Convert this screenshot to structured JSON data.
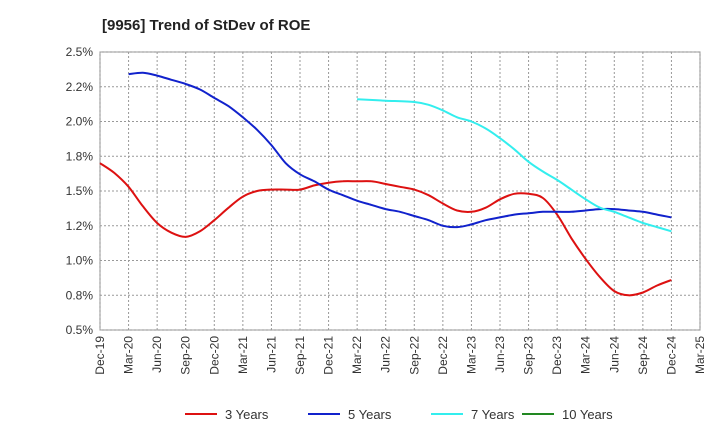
{
  "chart_data": {
    "type": "line",
    "title": "[9956]  Trend of StDev of ROE",
    "xlabel": "",
    "ylabel": "",
    "x_ticks": [
      "Dec-19",
      "Mar-20",
      "Jun-20",
      "Sep-20",
      "Dec-20",
      "Mar-21",
      "Jun-21",
      "Sep-21",
      "Dec-21",
      "Mar-22",
      "Jun-22",
      "Sep-22",
      "Dec-22",
      "Mar-23",
      "Jun-23",
      "Sep-23",
      "Dec-23",
      "Mar-24",
      "Jun-24",
      "Sep-24",
      "Dec-24",
      "Mar-25"
    ],
    "y_ticks": [
      "0.5%",
      "0.8%",
      "1.0%",
      "1.2%",
      "1.5%",
      "1.8%",
      "2.0%",
      "2.2%",
      "2.5%"
    ],
    "ylim": [
      0.5,
      2.5
    ],
    "grid": true,
    "legend_position": "bottom",
    "colors": {
      "3 Years": "#dd1111",
      "5 Years": "#1122cc",
      "7 Years": "#33eeee",
      "10 Years": "#228822"
    },
    "series": [
      {
        "name": "3 Years",
        "points": [
          [
            0,
            1.7
          ],
          [
            0.5,
            1.63
          ],
          [
            1,
            1.53
          ],
          [
            1.5,
            1.39
          ],
          [
            2,
            1.27
          ],
          [
            2.5,
            1.2
          ],
          [
            3,
            1.17
          ],
          [
            3.5,
            1.21
          ],
          [
            4,
            1.29
          ],
          [
            4.5,
            1.38
          ],
          [
            5,
            1.46
          ],
          [
            5.5,
            1.5
          ],
          [
            6,
            1.51
          ],
          [
            6.5,
            1.51
          ],
          [
            7,
            1.51
          ],
          [
            7.5,
            1.54
          ],
          [
            8,
            1.56
          ],
          [
            8.5,
            1.57
          ],
          [
            9,
            1.57
          ],
          [
            9.5,
            1.57
          ],
          [
            10,
            1.55
          ],
          [
            10.5,
            1.53
          ],
          [
            11,
            1.51
          ],
          [
            11.5,
            1.47
          ],
          [
            12,
            1.41
          ],
          [
            12.5,
            1.36
          ],
          [
            13,
            1.35
          ],
          [
            13.5,
            1.38
          ],
          [
            14,
            1.44
          ],
          [
            14.5,
            1.48
          ],
          [
            15,
            1.48
          ],
          [
            15.5,
            1.45
          ],
          [
            16,
            1.33
          ],
          [
            16.5,
            1.16
          ],
          [
            17,
            1.01
          ],
          [
            17.5,
            0.88
          ],
          [
            18,
            0.78
          ],
          [
            18.5,
            0.75
          ],
          [
            19,
            0.77
          ],
          [
            19.5,
            0.82
          ],
          [
            20,
            0.86
          ]
        ]
      },
      {
        "name": "5 Years",
        "points": [
          [
            1,
            2.34
          ],
          [
            1.5,
            2.35
          ],
          [
            2,
            2.33
          ],
          [
            2.5,
            2.3
          ],
          [
            3,
            2.27
          ],
          [
            3.5,
            2.23
          ],
          [
            4,
            2.17
          ],
          [
            4.5,
            2.11
          ],
          [
            5,
            2.03
          ],
          [
            5.5,
            1.94
          ],
          [
            6,
            1.83
          ],
          [
            6.5,
            1.7
          ],
          [
            7,
            1.62
          ],
          [
            7.5,
            1.57
          ],
          [
            8,
            1.51
          ],
          [
            8.5,
            1.47
          ],
          [
            9,
            1.43
          ],
          [
            9.5,
            1.4
          ],
          [
            10,
            1.37
          ],
          [
            10.5,
            1.35
          ],
          [
            11,
            1.32
          ],
          [
            11.5,
            1.29
          ],
          [
            12,
            1.25
          ],
          [
            12.5,
            1.24
          ],
          [
            13,
            1.26
          ],
          [
            13.5,
            1.29
          ],
          [
            14,
            1.31
          ],
          [
            14.5,
            1.33
          ],
          [
            15,
            1.34
          ],
          [
            15.5,
            1.35
          ],
          [
            16,
            1.35
          ],
          [
            16.5,
            1.35
          ],
          [
            17,
            1.36
          ],
          [
            17.5,
            1.37
          ],
          [
            18,
            1.37
          ],
          [
            18.5,
            1.36
          ],
          [
            19,
            1.35
          ],
          [
            19.5,
            1.33
          ],
          [
            20,
            1.31
          ]
        ]
      },
      {
        "name": "7 Years",
        "points": [
          [
            9,
            2.16
          ],
          [
            10,
            2.15
          ],
          [
            11,
            2.14
          ],
          [
            11.5,
            2.12
          ],
          [
            12,
            2.08
          ],
          [
            12.5,
            2.03
          ],
          [
            13,
            2.0
          ],
          [
            13.5,
            1.95
          ],
          [
            14,
            1.88
          ],
          [
            14.5,
            1.8
          ],
          [
            15,
            1.71
          ],
          [
            15.5,
            1.64
          ],
          [
            16,
            1.58
          ],
          [
            16.5,
            1.51
          ],
          [
            17,
            1.44
          ],
          [
            17.5,
            1.38
          ],
          [
            18,
            1.35
          ],
          [
            18.5,
            1.31
          ],
          [
            19,
            1.27
          ],
          [
            19.5,
            1.24
          ],
          [
            20,
            1.21
          ]
        ]
      },
      {
        "name": "10 Years",
        "points": []
      }
    ]
  }
}
